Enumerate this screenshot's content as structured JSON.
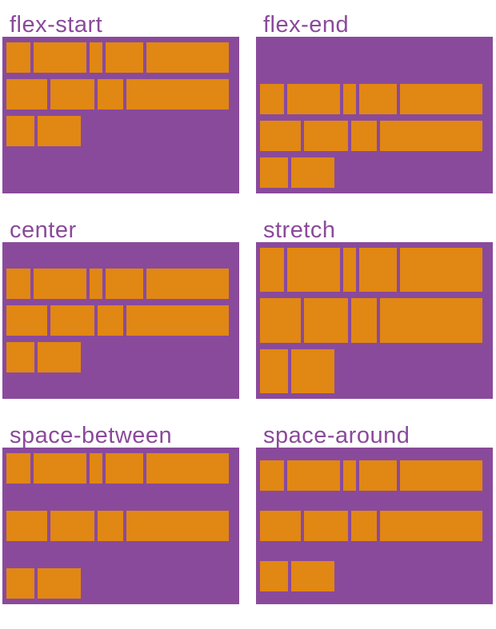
{
  "figure": {
    "description": "Six flex containers demonstrating CSS align-content values with wrapped rows of flex items",
    "colors": {
      "background": "#FFFFFF",
      "container": "#8A4A9B",
      "item": "#E18713",
      "label": "#8A4A9B"
    },
    "panels": [
      {
        "label": "flex-start",
        "align_content": "flex-start"
      },
      {
        "label": "flex-end",
        "align_content": "flex-end"
      },
      {
        "label": "center",
        "align_content": "center"
      },
      {
        "label": "stretch",
        "align_content": "stretch"
      },
      {
        "label": "space-between",
        "align_content": "space-between"
      },
      {
        "label": "space-around",
        "align_content": "space-around"
      }
    ],
    "item_rows": [
      [
        30,
        66,
        16,
        47,
        103
      ],
      [
        51,
        55,
        32,
        128
      ],
      [
        35,
        54
      ]
    ],
    "item_height": 38
  }
}
